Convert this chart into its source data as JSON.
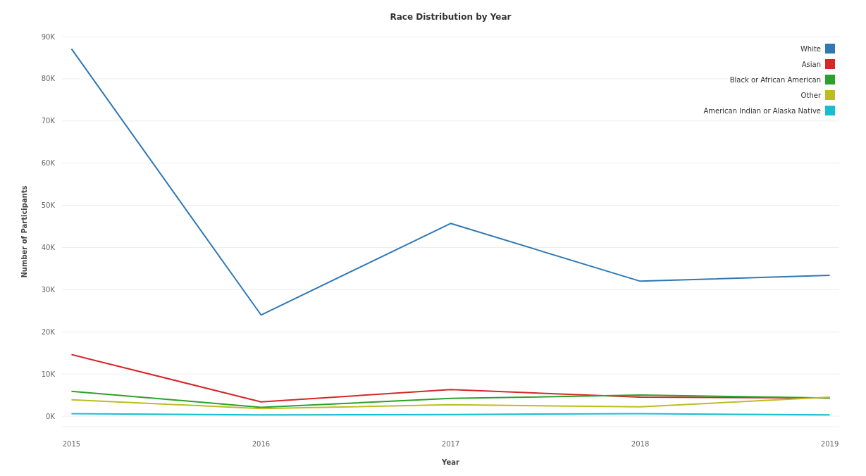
{
  "chart_data": {
    "type": "line",
    "title": "Race Distribution by Year",
    "xlabel": "Year",
    "ylabel": "Number of Participants",
    "categories": [
      "2015",
      "2016",
      "2017",
      "2018",
      "2019"
    ],
    "series": [
      {
        "name": "White",
        "color": "#2f78b4",
        "values": [
          87100,
          24000,
          45700,
          32000,
          33400
        ]
      },
      {
        "name": "Asian",
        "color": "#d62728",
        "values": [
          14600,
          3400,
          6300,
          4500,
          4300
        ]
      },
      {
        "name": "Black or African American",
        "color": "#2ca02c",
        "values": [
          5900,
          2100,
          4200,
          5000,
          4300
        ]
      },
      {
        "name": "Other",
        "color": "#bcbd22",
        "values": [
          3900,
          1800,
          2700,
          2200,
          4500
        ]
      },
      {
        "name": "American Indian or Alaska Native",
        "color": "#17becf",
        "values": [
          600,
          300,
          400,
          600,
          300
        ]
      }
    ],
    "ylim": [
      -2500,
      90000
    ],
    "yticks": [
      {
        "value": 0,
        "label": "0K"
      },
      {
        "value": 10000,
        "label": "10K"
      },
      {
        "value": 20000,
        "label": "20K"
      },
      {
        "value": 30000,
        "label": "30K"
      },
      {
        "value": 40000,
        "label": "40K"
      },
      {
        "value": 50000,
        "label": "50K"
      },
      {
        "value": 60000,
        "label": "60K"
      },
      {
        "value": 70000,
        "label": "70K"
      },
      {
        "value": 80000,
        "label": "80K"
      },
      {
        "value": 90000,
        "label": "90K"
      }
    ],
    "grid": "y",
    "legend": "top right",
    "marker": "none",
    "line_style": "solid"
  }
}
